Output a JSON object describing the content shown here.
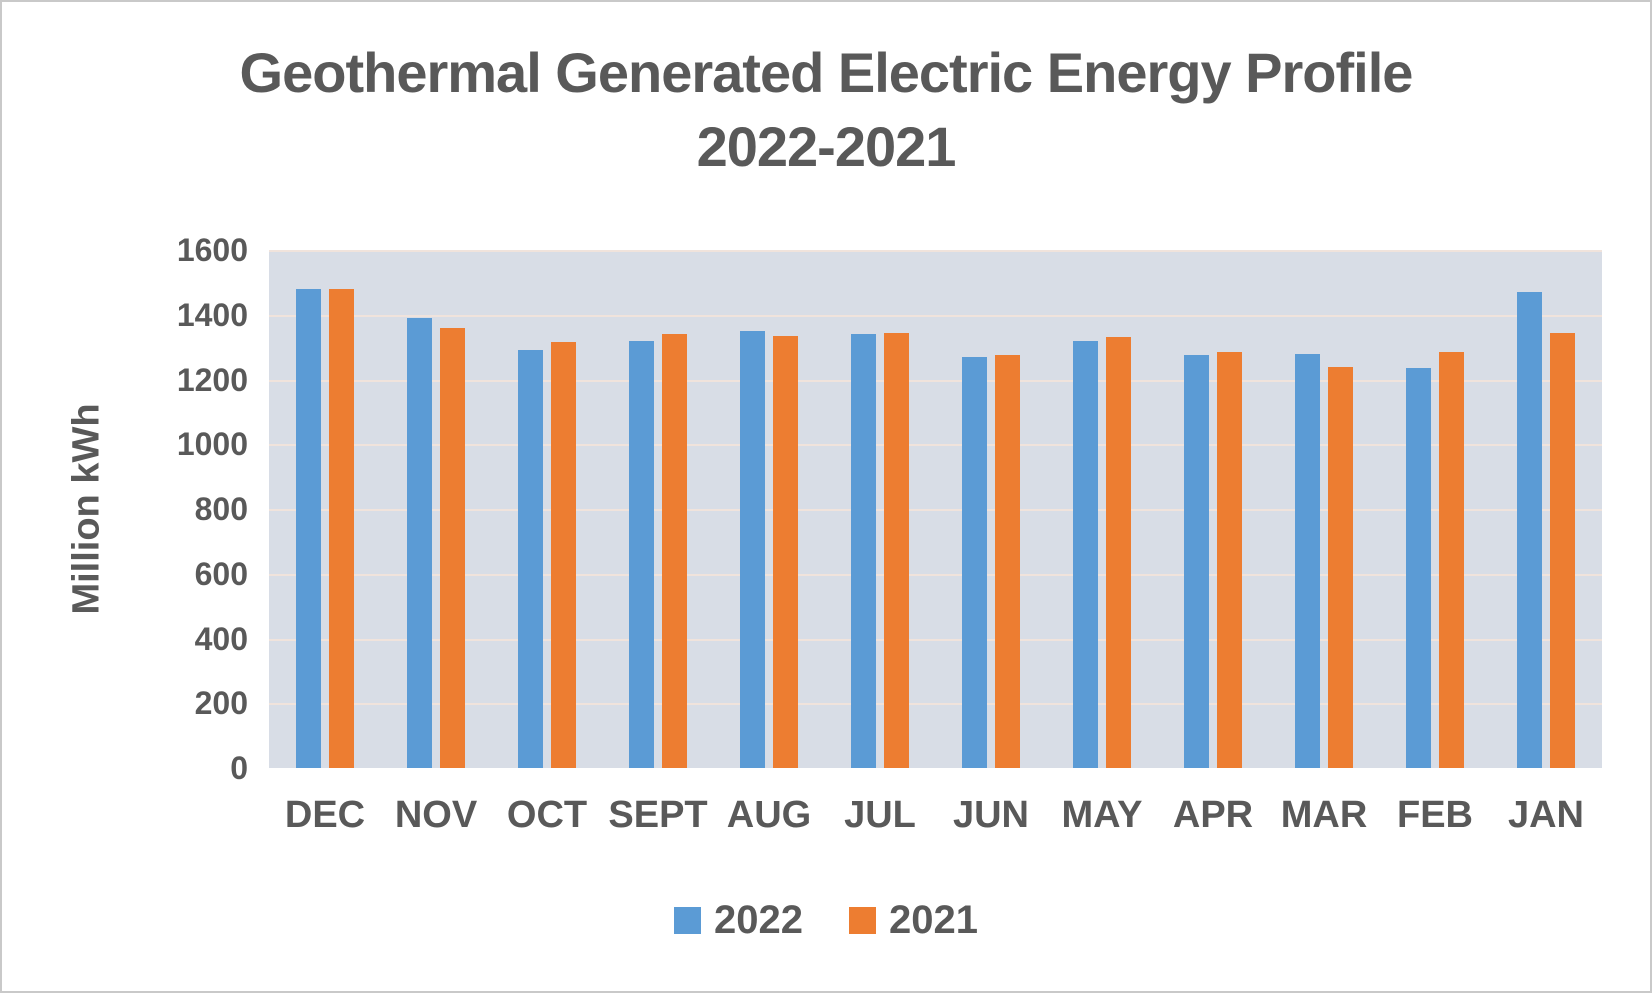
{
  "chart_data": {
    "type": "bar",
    "title": "Geothermal Generated Electric Energy Profile",
    "subtitle": "2022-2021",
    "ylabel": "Million kWh",
    "ylim": [
      0,
      1600
    ],
    "ytick_step": 200,
    "yticks": [
      0,
      200,
      400,
      600,
      800,
      1000,
      1200,
      1400,
      1600
    ],
    "categories": [
      "DEC",
      "NOV",
      "OCT",
      "SEPT",
      "AUG",
      "JUL",
      "JUN",
      "MAY",
      "APR",
      "MAR",
      "FEB",
      "JAN"
    ],
    "series": [
      {
        "name": "2022",
        "color": "#5B9BD5",
        "values": [
          1480,
          1390,
          1290,
          1320,
          1350,
          1340,
          1270,
          1320,
          1275,
          1280,
          1235,
          1470
        ]
      },
      {
        "name": "2021",
        "color": "#ED7D31",
        "values": [
          1480,
          1360,
          1315,
          1340,
          1335,
          1345,
          1275,
          1330,
          1285,
          1240,
          1285,
          1345
        ]
      }
    ],
    "legend_position": "bottom",
    "grid": true,
    "colors": {
      "plot_background": "#D8DDE6",
      "gridline": "#F0E3DC",
      "text": "#595959",
      "canvas_border": "#C9C9C9"
    }
  }
}
